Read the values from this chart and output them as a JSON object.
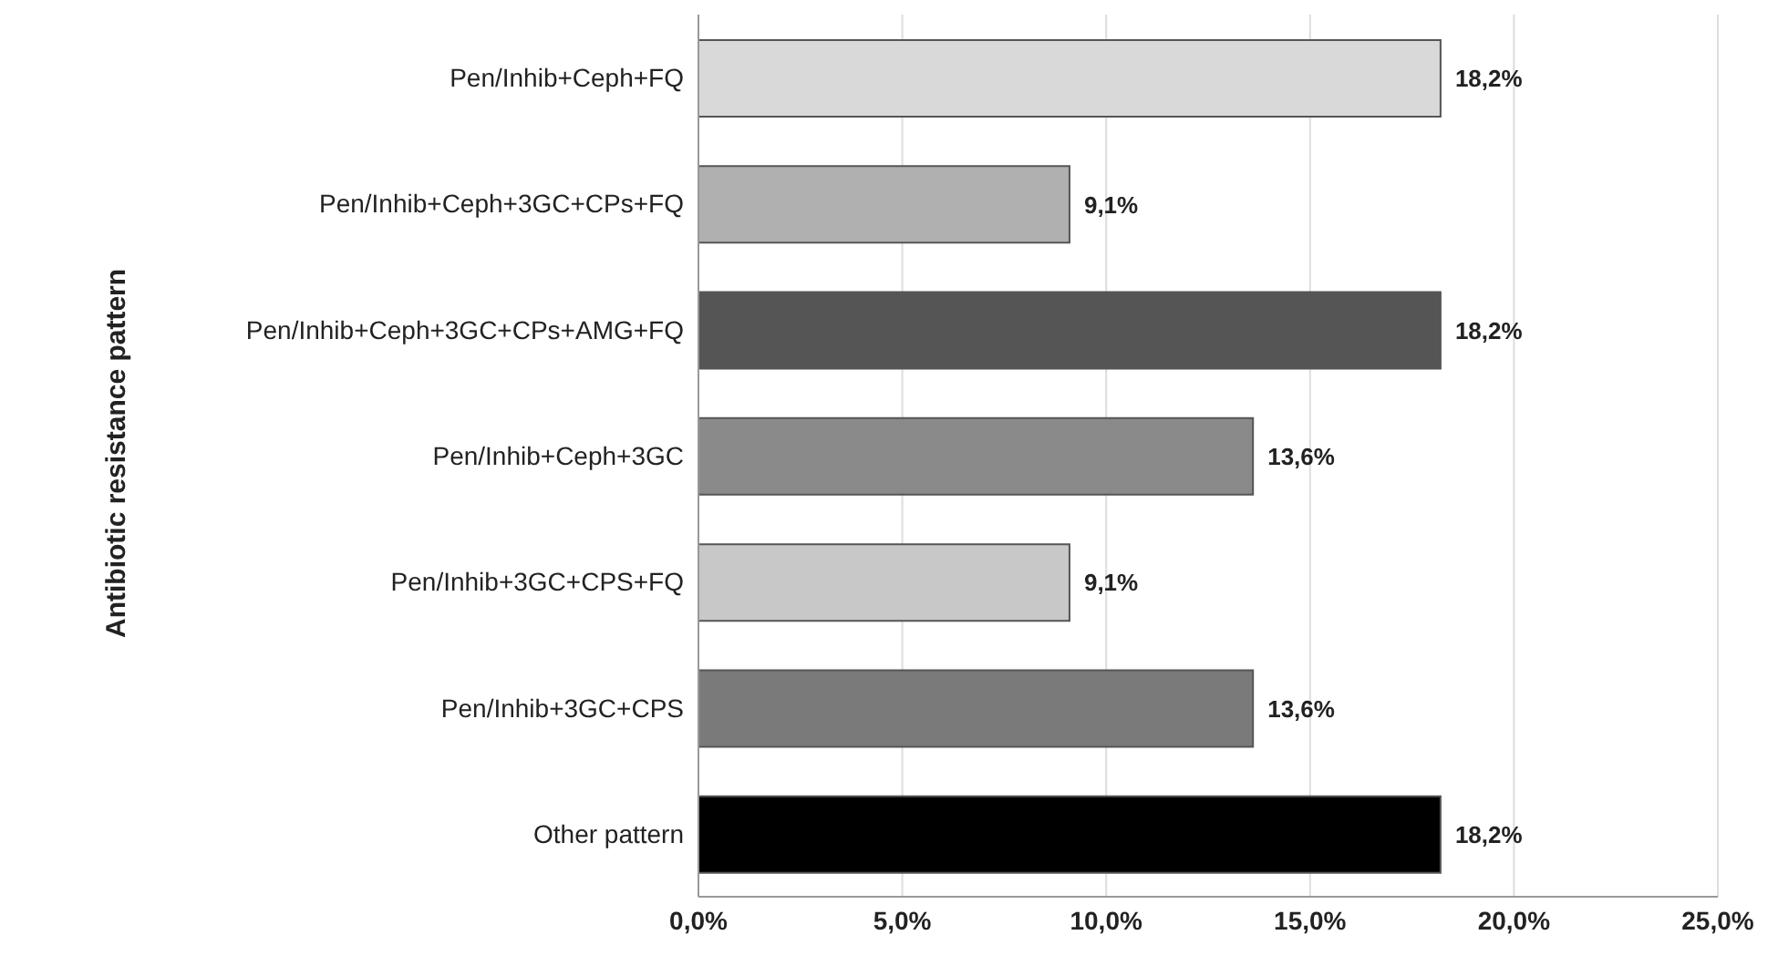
{
  "chart_data": {
    "type": "bar",
    "orientation": "horizontal",
    "ylabel": "Antibiotic resistance pattern",
    "categories": [
      "Pen/Inhib+Ceph+FQ",
      "Pen/Inhib+Ceph+3GC+CPs+FQ",
      "Pen/Inhib+Ceph+3GC+CPs+AMG+FQ",
      "Pen/Inhib+Ceph+3GC",
      "Pen/Inhib+3GC+CPS+FQ",
      "Pen/Inhib+3GC+CPS",
      "Other pattern"
    ],
    "values": [
      18.2,
      9.1,
      18.2,
      13.6,
      9.1,
      13.6,
      18.2
    ],
    "colors": [
      "#d9d9d9",
      "#b0b0b0",
      "#555555",
      "#8a8a8a",
      "#c8c8c8",
      "#7a7a7a",
      "#000000"
    ],
    "value_labels": [
      "18,2%",
      "9,1%",
      "18,2%",
      "13,6%",
      "9,1%",
      "13,6%",
      "18,2%"
    ],
    "xlim": [
      0,
      25
    ],
    "xticks": [
      {
        "value": 0,
        "label": "0,0%"
      },
      {
        "value": 5,
        "label": "5,0%"
      },
      {
        "value": 10,
        "label": "10,0%"
      },
      {
        "value": 15,
        "label": "15,0%"
      },
      {
        "value": 20,
        "label": "20,0%"
      },
      {
        "value": 25,
        "label": "25,0%"
      }
    ],
    "grid": "x",
    "legend": false
  }
}
